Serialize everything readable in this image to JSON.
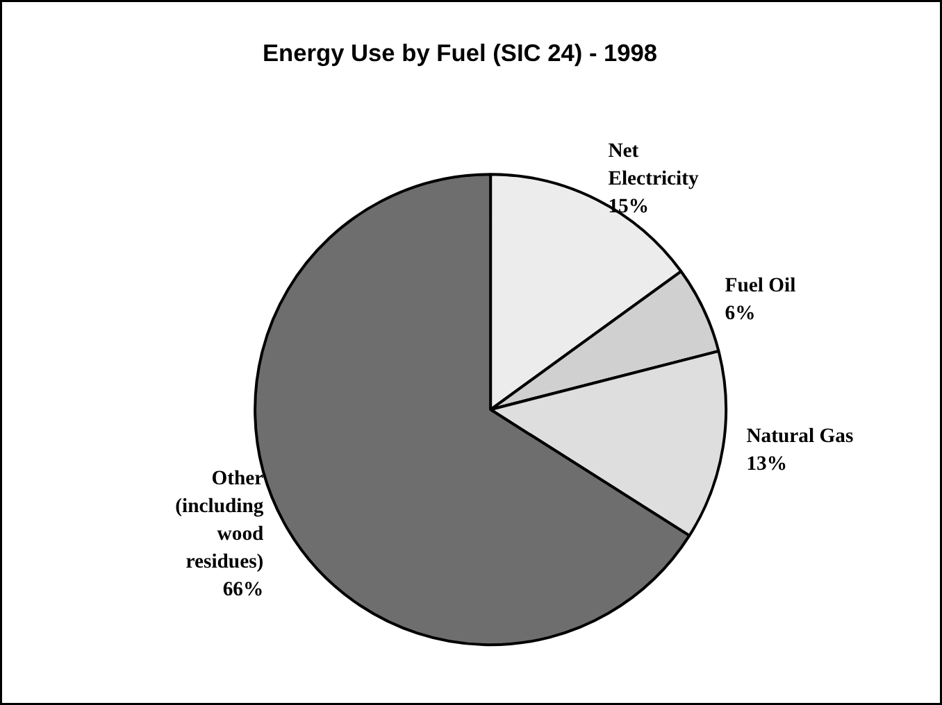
{
  "chart_data": {
    "type": "pie",
    "title": "Energy Use by Fuel (SIC 24) - 1998",
    "categories": [
      "Net Electricity",
      "Fuel Oil",
      "Natural Gas",
      "Other (including wood residues)"
    ],
    "values": [
      15,
      6,
      13,
      66
    ],
    "colors": [
      "#ececec",
      "#d0d0d0",
      "#dedede",
      "#6e6e6e"
    ],
    "value_labels": [
      "15%",
      "6%",
      "13%",
      "66%"
    ]
  }
}
